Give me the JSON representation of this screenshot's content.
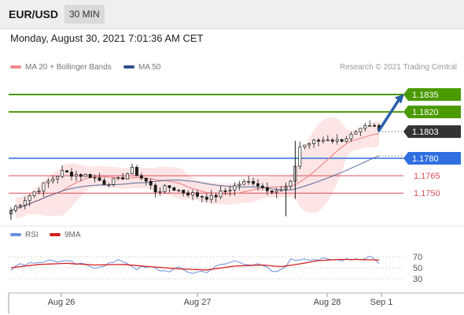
{
  "header": {
    "symbol": "EUR/USD",
    "timeframe": "30 MIN"
  },
  "timestamp": "Monday, August 30, 2021 7:01:36 AM CET",
  "legend": {
    "ma20_label": "MA 20 + Bollinger Bands",
    "ma50_label": "MA 50",
    "credit": "Research © 2021 Trading Central"
  },
  "rsi_legend": {
    "rsi_label": "RSI",
    "ma_label": "9MA"
  },
  "colors": {
    "resistance": "#4a9a00",
    "support": "#2f6fe0",
    "level": "#d94f5a",
    "price_badge": "#333333",
    "ma20": "#f08a8a",
    "bollinger_fill": "#fde0e0",
    "ma50": "#2f4f8a",
    "candle": "#1a1a1a",
    "arrow": "#2a5fa8",
    "rsi": "#6b8fe0",
    "rsi_ma": "#d62020"
  },
  "chart_data": {
    "type": "candlestick",
    "x_ticks": [
      "Aug 26",
      "Aug 27",
      "Aug 28",
      "Sep 1"
    ],
    "price_levels": [
      {
        "value": 1.1835,
        "label": "1.1835",
        "kind": "resistance"
      },
      {
        "value": 1.182,
        "label": "1.1820",
        "kind": "resistance"
      },
      {
        "value": 1.1803,
        "label": "1.1803",
        "kind": "current"
      },
      {
        "value": 1.178,
        "label": "1.1780",
        "kind": "support"
      },
      {
        "value": 1.1765,
        "label": "1.1765",
        "kind": "level"
      },
      {
        "value": 1.175,
        "label": "1.1750",
        "kind": "level"
      }
    ],
    "ylim": [
      1.1725,
      1.1852
    ],
    "close_path": [
      [
        0,
        1.1735
      ],
      [
        4,
        1.1748
      ],
      [
        8,
        1.176
      ],
      [
        11,
        1.1768
      ],
      [
        14,
        1.1766
      ],
      [
        17,
        1.1765
      ],
      [
        20,
        1.1759
      ],
      [
        23,
        1.1761
      ],
      [
        26,
        1.177
      ],
      [
        29,
        1.176
      ],
      [
        31,
        1.1752
      ],
      [
        34,
        1.1755
      ],
      [
        37,
        1.1751
      ],
      [
        40,
        1.1748
      ],
      [
        43,
        1.1746
      ],
      [
        46,
        1.1752
      ],
      [
        49,
        1.1758
      ],
      [
        52,
        1.176
      ],
      [
        54,
        1.1755
      ],
      [
        56,
        1.1753
      ],
      [
        58,
        1.1752
      ],
      [
        60,
        1.1758
      ],
      [
        62,
        1.179
      ],
      [
        64,
        1.1793
      ],
      [
        66,
        1.1795
      ],
      [
        68,
        1.1797
      ],
      [
        70,
        1.1795
      ],
      [
        72,
        1.1798
      ],
      [
        74,
        1.1801
      ],
      [
        76,
        1.1806
      ],
      [
        78,
        1.1807
      ],
      [
        79,
        1.1803
      ]
    ],
    "rsi_ticks": [
      70,
      50,
      30
    ],
    "rsi_path": [
      [
        0,
        48
      ],
      [
        3,
        58
      ],
      [
        6,
        61
      ],
      [
        9,
        63
      ],
      [
        12,
        60
      ],
      [
        15,
        55
      ],
      [
        18,
        52
      ],
      [
        21,
        57
      ],
      [
        24,
        63
      ],
      [
        27,
        49
      ],
      [
        30,
        50
      ],
      [
        33,
        44
      ],
      [
        36,
        48
      ],
      [
        39,
        41
      ],
      [
        42,
        44
      ],
      [
        45,
        54
      ],
      [
        48,
        62
      ],
      [
        51,
        58
      ],
      [
        54,
        52
      ],
      [
        57,
        40
      ],
      [
        60,
        63
      ],
      [
        63,
        68
      ],
      [
        66,
        65
      ],
      [
        69,
        63
      ],
      [
        72,
        67
      ],
      [
        75,
        66
      ],
      [
        77,
        71
      ],
      [
        79,
        60
      ]
    ],
    "rsi_ma_path": [
      [
        0,
        50
      ],
      [
        6,
        56
      ],
      [
        12,
        58
      ],
      [
        18,
        55
      ],
      [
        24,
        56
      ],
      [
        30,
        52
      ],
      [
        36,
        48
      ],
      [
        42,
        46
      ],
      [
        48,
        53
      ],
      [
        54,
        55
      ],
      [
        58,
        52
      ],
      [
        62,
        57
      ],
      [
        66,
        63
      ],
      [
        70,
        65
      ],
      [
        74,
        65
      ],
      [
        79,
        64
      ]
    ]
  }
}
